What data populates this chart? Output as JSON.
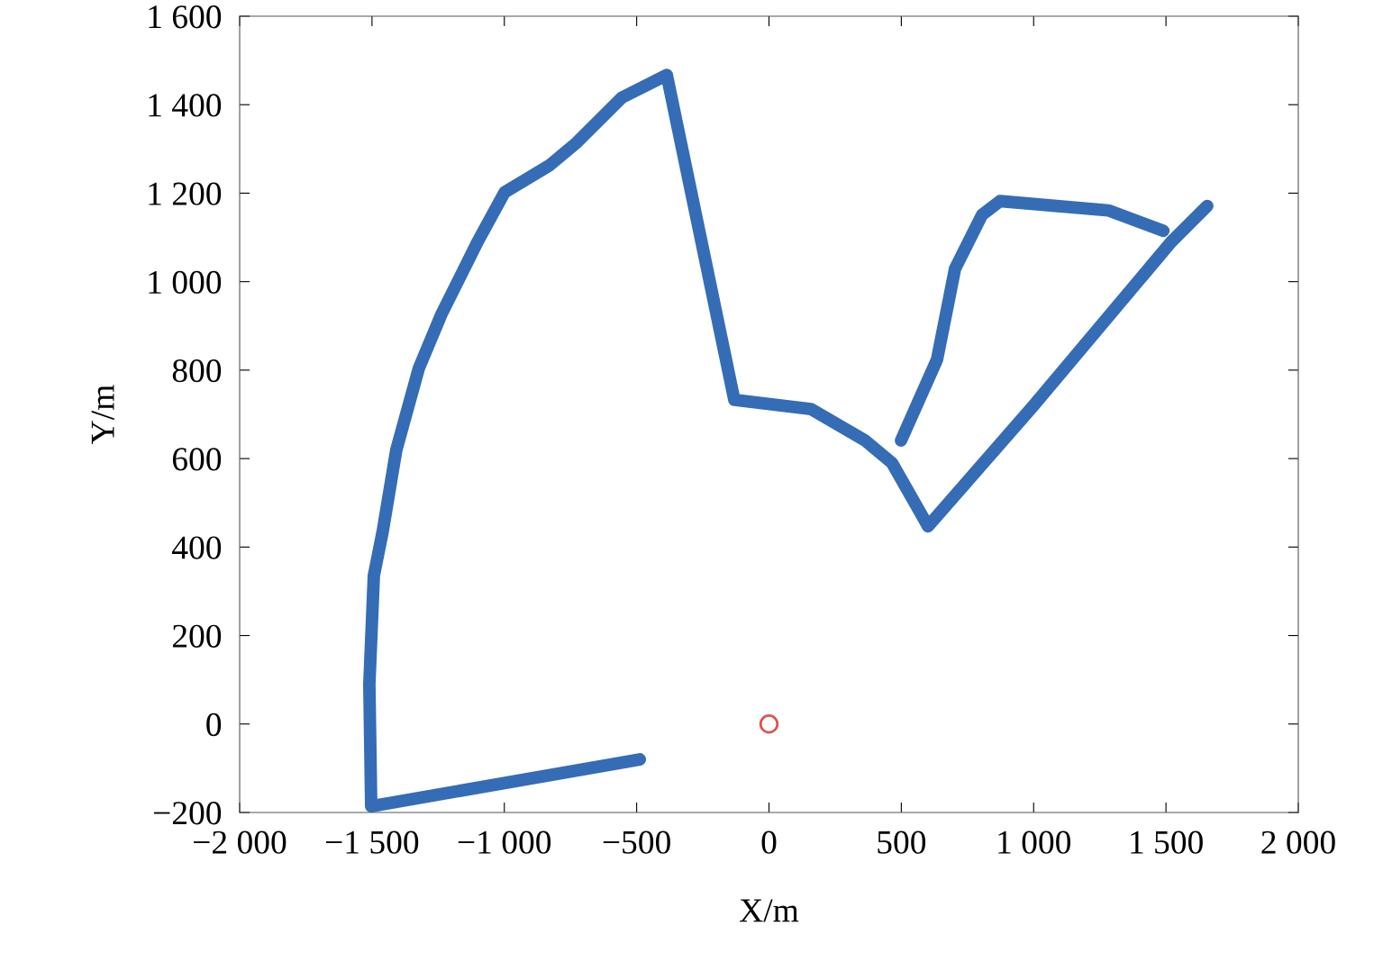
{
  "chart_data": {
    "type": "line",
    "xlabel": "X/m",
    "ylabel": "Y/m",
    "grid": false,
    "xlim": [
      -2000,
      2000
    ],
    "ylim": [
      -200,
      1600
    ],
    "xticks": [
      {
        "value": -2000,
        "label": "−2 000"
      },
      {
        "value": -1500,
        "label": "−1 500"
      },
      {
        "value": -1000,
        "label": "−1 000"
      },
      {
        "value": -500,
        "label": "−500"
      },
      0,
      500,
      {
        "value": 1000,
        "label": "1 000"
      },
      {
        "value": 1500,
        "label": "1 500"
      },
      {
        "value": 2000,
        "label": "2 000"
      }
    ],
    "yticks": [
      {
        "value": -200,
        "label": "−200"
      },
      0,
      200,
      400,
      600,
      800,
      {
        "value": 1000,
        "label": "1 000"
      },
      {
        "value": 1200,
        "label": "1 200"
      },
      {
        "value": 1400,
        "label": "1 400"
      },
      {
        "value": 1600,
        "label": "1 600"
      }
    ],
    "series": [
      {
        "color": "#356cb6",
        "x": [
          -488,
          -1503,
          -1510,
          -1493,
          -1459,
          -1408,
          -1323,
          -1237,
          -1101,
          -999,
          -829,
          -727,
          -556,
          -386,
          -131,
          158,
          363,
          465,
          601,
          1000,
          1520,
          1656
        ],
        "values": [
          -80,
          -186,
          90,
          335,
          437,
          620,
          804,
          927,
          1090,
          1202,
          1263,
          1314,
          1416,
          1467,
          733,
          712,
          641,
          590,
          447,
          720,
          1090,
          1171
        ]
      },
      {
        "color": "#356cb6",
        "x": [
          1490,
          1282,
          873,
          805,
          703,
          635,
          499
        ],
        "values": [
          1115,
          1161,
          1182,
          1151,
          1029,
          824,
          641
        ]
      },
      {
        "type": "scatter",
        "marker": "circle",
        "color": "#d9574a",
        "x": [
          0
        ],
        "values": [
          0
        ]
      }
    ]
  }
}
